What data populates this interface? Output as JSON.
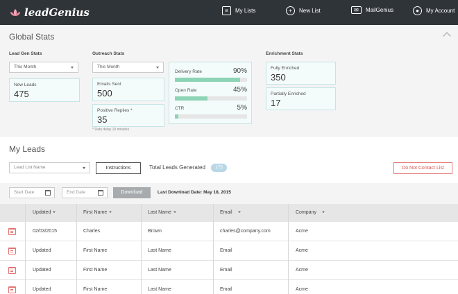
{
  "brand": {
    "name": "leadGenius"
  },
  "nav": {
    "my_lists": "My Lists",
    "new_list": "New List",
    "mailgenius": "MailGenius",
    "my_account": "My Account"
  },
  "global_stats": {
    "title": "Global Stats",
    "lead_gen": {
      "title": "Lead Gen Stats",
      "period": "This Month",
      "new_leads_label": "New Leads",
      "new_leads_value": "475"
    },
    "outreach": {
      "title": "Outreach Stats",
      "period": "This Month",
      "emails_sent_label": "Emails Sent",
      "emails_sent_value": "500",
      "positive_replies_label": "Positive Replies *",
      "positive_replies_value": "35",
      "note": "* Data delay 10 minutes",
      "rates": [
        {
          "label": "Delivery Rate",
          "pct": "90%",
          "fill": 0.9
        },
        {
          "label": "Open Rate",
          "pct": "45%",
          "fill": 0.45
        },
        {
          "label": "CTR",
          "pct": "5%",
          "fill": 0.05
        }
      ]
    },
    "enrichment": {
      "title": "Enrichment Stats",
      "fully_label": "Fully Enriched",
      "fully_value": "350",
      "partially_label": "Partially Enriched",
      "partially_value": "17"
    }
  },
  "my_leads": {
    "title": "My Leads",
    "lead_list_placeholder": "Lead List Name",
    "instructions_label": "Instructions",
    "total_label": "Total Leads Generated",
    "total_value": "175",
    "do_not_contact_label": "Do Not Contact List",
    "start_date_placeholder": "Start Date",
    "end_date_placeholder": "End Date",
    "download_label": "Download",
    "last_download": "Last Download Date: May 18, 2015"
  },
  "table": {
    "columns": [
      "Updated",
      "First Name",
      "Last Name",
      "Email",
      "Company"
    ],
    "rows": [
      [
        "02/03/2015",
        "Charles",
        "Brown",
        "charles@company.com",
        "Acme"
      ],
      [
        "Updated",
        "First Name",
        "Last Name",
        "Email",
        "Acme"
      ],
      [
        "Updated",
        "First Name",
        "Last Name",
        "Email",
        "Acme"
      ],
      [
        "Updated",
        "First Name",
        "Last Name",
        "Email",
        "Acme"
      ]
    ]
  },
  "colors": {
    "topbar": "#2f3439",
    "accent_green": "#8dd3b6",
    "badge": "#b9d7e6",
    "danger": "#d9534f",
    "row_icon": "#e57373"
  }
}
